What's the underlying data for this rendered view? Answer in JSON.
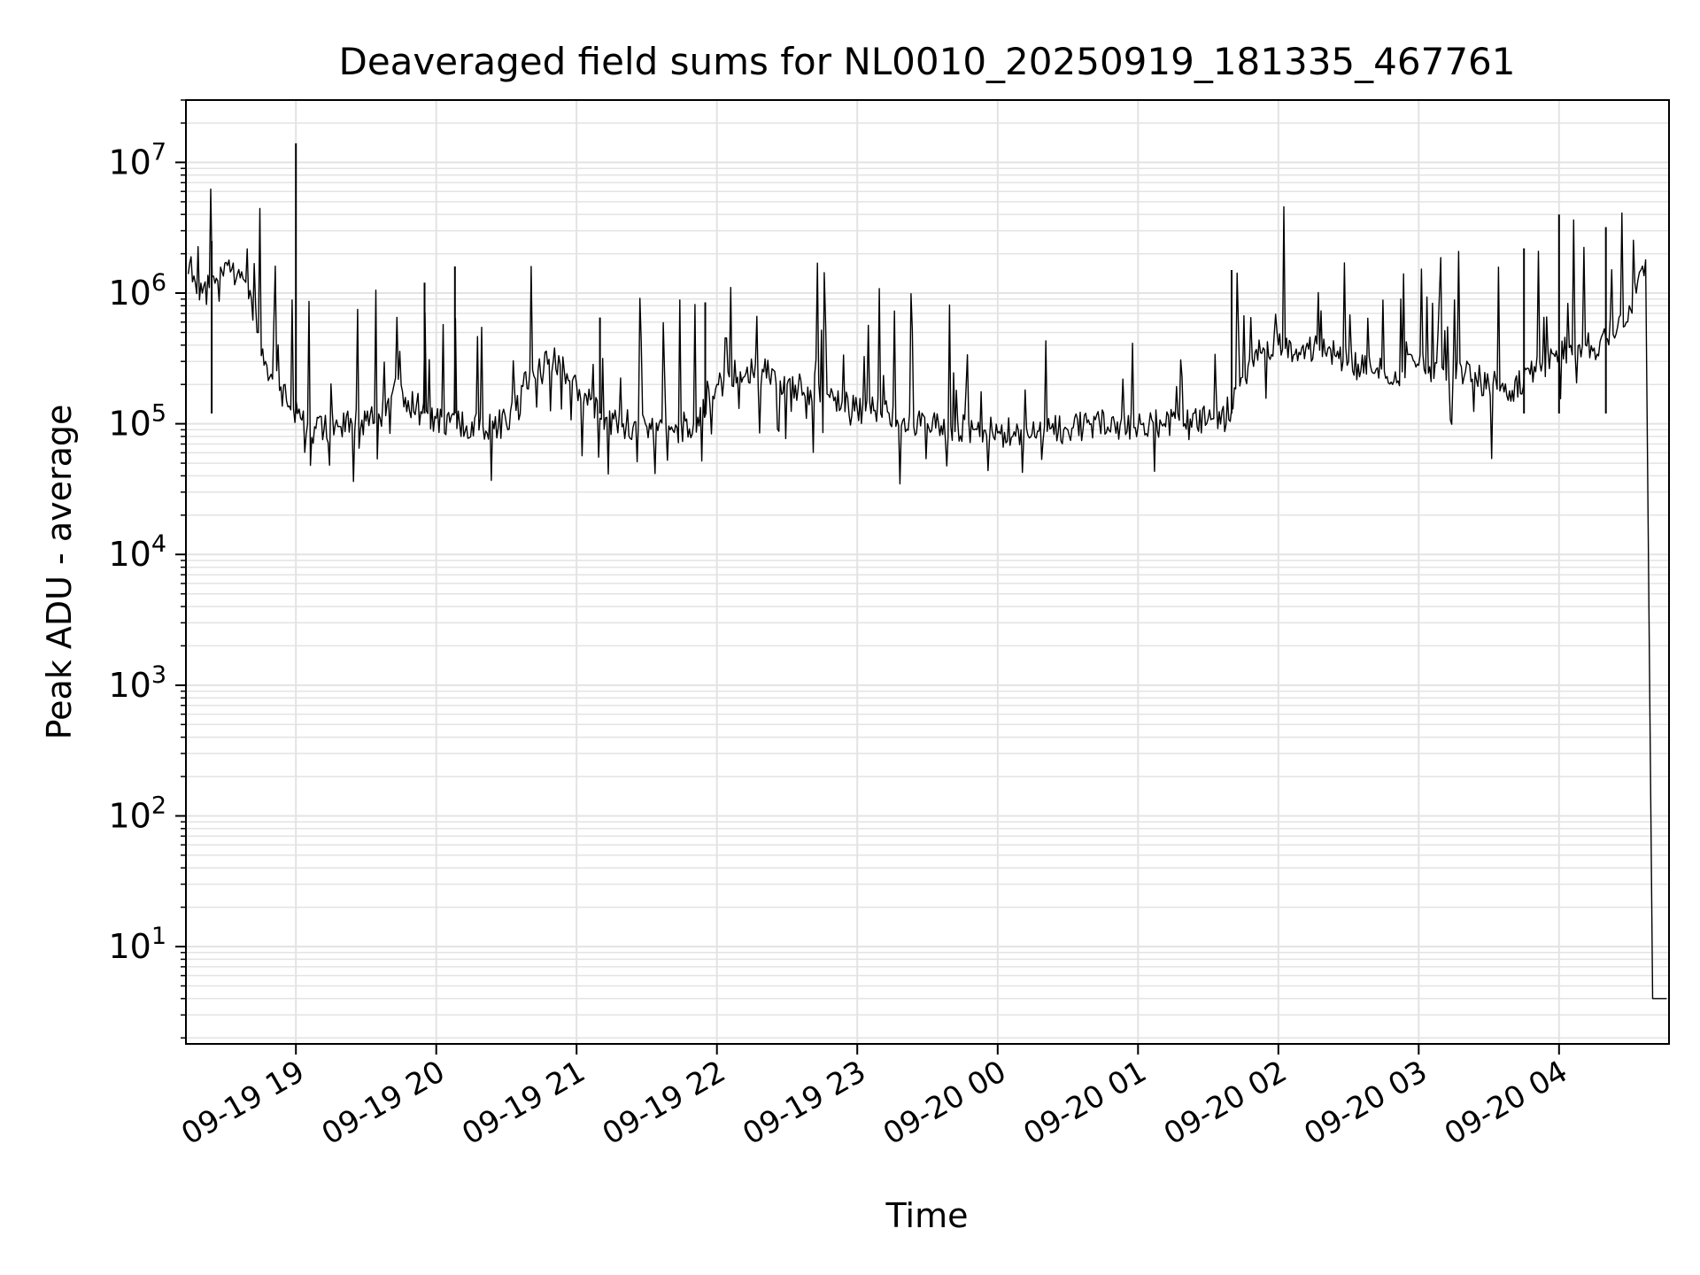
{
  "chart_data": {
    "type": "line",
    "title": "Deaveraged field sums for NL0010_20250919_181335_467761",
    "xlabel": "Time",
    "ylabel": "Peak ADU - average",
    "yscale": "log",
    "ylim": [
      1.8,
      30000000
    ],
    "xlim": [
      "2025-09-19 18:13",
      "2025-09-20 04:47"
    ],
    "grid": true,
    "x_ticks": [
      "09-19 19",
      "09-19 20",
      "09-19 21",
      "09-19 22",
      "09-19 23",
      "09-20 00",
      "09-20 01",
      "09-20 02",
      "09-20 03",
      "09-20 04"
    ],
    "x_tick_times": [
      "2025-09-19 19:00",
      "2025-09-19 20:00",
      "2025-09-19 21:00",
      "2025-09-19 22:00",
      "2025-09-19 23:00",
      "2025-09-20 00:00",
      "2025-09-20 01:00",
      "2025-09-20 02:00",
      "2025-09-20 03:00",
      "2025-09-20 04:00"
    ],
    "y_ticks": [
      {
        "value": 10,
        "base": "10",
        "exp": "1"
      },
      {
        "value": 100,
        "base": "10",
        "exp": "2"
      },
      {
        "value": 1000,
        "base": "10",
        "exp": "3"
      },
      {
        "value": 10000,
        "base": "10",
        "exp": "4"
      },
      {
        "value": 100000,
        "base": "10",
        "exp": "5"
      },
      {
        "value": 1000000,
        "base": "10",
        "exp": "6"
      },
      {
        "value": 10000000,
        "base": "10",
        "exp": "7"
      }
    ],
    "series": [
      {
        "color": "#000000",
        "x": [
          "2025-09-19 18:14",
          "2025-09-19 18:17",
          "2025-09-19 18:20",
          "2025-09-19 18:23",
          "2025-09-19 18:26",
          "2025-09-19 18:29",
          "2025-09-19 18:32",
          "2025-09-19 18:35",
          "2025-09-19 18:38",
          "2025-09-19 18:41",
          "2025-09-19 18:44",
          "2025-09-19 18:47",
          "2025-09-19 18:50",
          "2025-09-19 18:53",
          "2025-09-19 18:56",
          "2025-09-19 18:59",
          "2025-09-19 19:02",
          "2025-09-19 19:05",
          "2025-09-19 19:08",
          "2025-09-19 19:12",
          "2025-09-19 19:18",
          "2025-09-19 19:24",
          "2025-09-19 19:30",
          "2025-09-19 19:36",
          "2025-09-19 19:42",
          "2025-09-19 19:48",
          "2025-09-19 19:54",
          "2025-09-19 20:00",
          "2025-09-19 20:10",
          "2025-09-19 20:20",
          "2025-09-19 20:30",
          "2025-09-19 20:40",
          "2025-09-19 20:50",
          "2025-09-19 21:00",
          "2025-09-19 21:10",
          "2025-09-19 21:20",
          "2025-09-19 21:30",
          "2025-09-19 21:40",
          "2025-09-19 21:50",
          "2025-09-19 22:00",
          "2025-09-19 22:10",
          "2025-09-19 22:20",
          "2025-09-19 22:30",
          "2025-09-19 22:40",
          "2025-09-19 22:50",
          "2025-09-19 23:00",
          "2025-09-19 23:10",
          "2025-09-19 23:20",
          "2025-09-19 23:30",
          "2025-09-19 23:40",
          "2025-09-19 23:50",
          "2025-09-20 00:00",
          "2025-09-20 00:10",
          "2025-09-20 00:20",
          "2025-09-20 00:30",
          "2025-09-20 00:40",
          "2025-09-20 00:50",
          "2025-09-20 01:00",
          "2025-09-20 01:10",
          "2025-09-20 01:20",
          "2025-09-20 01:30",
          "2025-09-20 01:40",
          "2025-09-20 01:50",
          "2025-09-20 02:00",
          "2025-09-20 02:10",
          "2025-09-20 02:20",
          "2025-09-20 02:30",
          "2025-09-20 02:40",
          "2025-09-20 02:50",
          "2025-09-20 03:00",
          "2025-09-20 03:10",
          "2025-09-20 03:20",
          "2025-09-20 03:30",
          "2025-09-20 03:40",
          "2025-09-20 03:50",
          "2025-09-20 04:00",
          "2025-09-20 04:05",
          "2025-09-20 04:10",
          "2025-09-20 04:15",
          "2025-09-20 04:20",
          "2025-09-20 04:25",
          "2025-09-20 04:30",
          "2025-09-20 04:33",
          "2025-09-20 04:35",
          "2025-09-20 04:37",
          "2025-09-20 04:40",
          "2025-09-20 04:43",
          "2025-09-20 04:46"
        ],
        "y": [
          1400000,
          1200000,
          1000000,
          1100000,
          1300000,
          1350000,
          1450000,
          1400000,
          1250000,
          900000,
          500000,
          300000,
          220000,
          180000,
          150000,
          130000,
          110000,
          100000,
          95000,
          90000,
          95000,
          100000,
          105000,
          110000,
          200000,
          150000,
          120000,
          110000,
          100000,
          95000,
          100000,
          250000,
          300000,
          200000,
          110000,
          100000,
          95000,
          90000,
          100000,
          200000,
          250000,
          250000,
          200000,
          180000,
          150000,
          130000,
          120000,
          110000,
          100000,
          95000,
          90000,
          85000,
          90000,
          95000,
          90000,
          100000,
          100000,
          95000,
          100000,
          100000,
          110000,
          130000,
          350000,
          400000,
          380000,
          350000,
          300000,
          250000,
          250000,
          280000,
          270000,
          250000,
          200000,
          180000,
          250000,
          350000,
          400000,
          400000,
          380000,
          450000,
          550000,
          800000,
          1000000,
          1500000,
          1800000,
          4,
          4,
          4
        ],
        "spikes": [
          {
            "x": "2025-09-19 18:24",
            "y": 2500000
          },
          {
            "x": "2025-09-19 19:00",
            "y": 14000000
          },
          {
            "x": "2025-09-19 19:55",
            "y": 1200000
          },
          {
            "x": "2025-09-19 20:08",
            "y": 1600000
          },
          {
            "x": "2025-09-19 21:10",
            "y": 650000
          },
          {
            "x": "2025-09-19 21:55",
            "y": 850000
          },
          {
            "x": "2025-09-20 01:40",
            "y": 1500000
          },
          {
            "x": "2025-09-20 03:45",
            "y": 2200000
          },
          {
            "x": "2025-09-20 04:00",
            "y": 4000000
          },
          {
            "x": "2025-09-20 04:20",
            "y": 3200000
          }
        ]
      }
    ]
  }
}
